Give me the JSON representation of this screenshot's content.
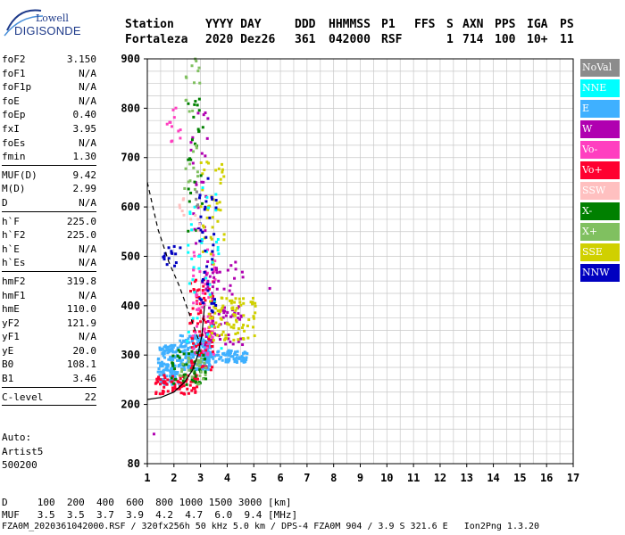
{
  "logo": {
    "line1": "Lowell",
    "line2": "DIGISONDE"
  },
  "header": {
    "labels": {
      "station": "Station",
      "date": "YYYY DAY",
      "ddd": "DDD",
      "time": "HHMMSS",
      "p1": "P1",
      "ffs": "FFS",
      "s": "S",
      "axn": "AXN",
      "pps": "PPS",
      "iga": "IGA",
      "ps": "PS"
    },
    "values": {
      "station": "Fortaleza",
      "date": "2020 Dez26",
      "ddd": "361",
      "time": "042000",
      "p1": "RSF",
      "s": "1",
      "axn": "714",
      "pps": "100",
      "iga": "10+",
      "ps": "11"
    }
  },
  "params": {
    "group1": [
      {
        "name": "foF2",
        "value": "3.150"
      },
      {
        "name": "foF1",
        "value": "N/A"
      },
      {
        "name": "foF1p",
        "value": "N/A"
      },
      {
        "name": "foE",
        "value": "N/A"
      },
      {
        "name": "foEp",
        "value": "0.40"
      },
      {
        "name": "fxI",
        "value": "3.95"
      },
      {
        "name": "foEs",
        "value": "N/A"
      },
      {
        "name": "fmin",
        "value": "1.30"
      }
    ],
    "group2": [
      {
        "name": "MUF(D)",
        "value": "9.42"
      },
      {
        "name": "M(D)",
        "value": "2.99"
      },
      {
        "name": "D",
        "value": "N/A"
      }
    ],
    "group3": [
      {
        "name": "h`F",
        "value": "225.0"
      },
      {
        "name": "h`F2",
        "value": "225.0"
      },
      {
        "name": "h`E",
        "value": "N/A"
      },
      {
        "name": "h`Es",
        "value": "N/A"
      }
    ],
    "group4": [
      {
        "name": "hmF2",
        "value": "319.8"
      },
      {
        "name": "hmF1",
        "value": "N/A"
      },
      {
        "name": "hmE",
        "value": "110.0"
      },
      {
        "name": "yF2",
        "value": "121.9"
      },
      {
        "name": "yF1",
        "value": "N/A"
      },
      {
        "name": "yE",
        "value": "20.0"
      },
      {
        "name": "B0",
        "value": "108.1"
      },
      {
        "name": "B1",
        "value": "3.46"
      }
    ],
    "group5": [
      {
        "name": "C-level",
        "value": "22"
      }
    ]
  },
  "auto": {
    "line1": "Auto:",
    "line2": "Artist5",
    "line3": "500200"
  },
  "legend": [
    {
      "label": "NoVal",
      "color": "#8c8c8c"
    },
    {
      "label": "NNE",
      "color": "#00ffff"
    },
    {
      "label": "E",
      "color": "#3fb0ff"
    },
    {
      "label": "W",
      "color": "#b000b0"
    },
    {
      "label": "Vo-",
      "color": "#ff3fc0"
    },
    {
      "label": "Vo+",
      "color": "#ff0030"
    },
    {
      "label": "SSW",
      "color": "#ffc0c0"
    },
    {
      "label": "X-",
      "color": "#008000"
    },
    {
      "label": "X+",
      "color": "#80c060"
    },
    {
      "label": "SSE",
      "color": "#d0d000"
    },
    {
      "label": "NNW",
      "color": "#0000c0"
    }
  ],
  "footer": {
    "line1": "D     100  200  400  600  800 1000 1500 3000 [km]",
    "line2": "MUF   3.5  3.5  3.7  3.9  4.2  4.7  6.0  9.4 [MHz]",
    "line3": "FZA0M_2020361042000.RSF / 320fx256h 50 kHz 5.0 km / DPS-4 FZA0M 904 / 3.9 S 321.6 E   Ion2Png 1.3.20"
  },
  "chart_data": {
    "type": "scatter",
    "xlim": [
      1,
      17
    ],
    "ylim": [
      80,
      900
    ],
    "x_ticks": [
      1,
      2,
      3,
      4,
      5,
      6,
      7,
      8,
      9,
      10,
      11,
      12,
      13,
      14,
      15,
      16,
      17
    ],
    "y_ticks": [
      80,
      200,
      300,
      400,
      500,
      600,
      700,
      800,
      900
    ],
    "grid": true,
    "legend_position": "right",
    "clusters": [
      {
        "series": "E",
        "x": [
          1.4,
          2.2
        ],
        "y": [
          240,
          320
        ],
        "n": 140
      },
      {
        "series": "E",
        "x": [
          2.2,
          3.4
        ],
        "y": [
          270,
          340
        ],
        "n": 180
      },
      {
        "series": "E",
        "x": [
          3.2,
          4.8
        ],
        "y": [
          285,
          310
        ],
        "n": 90
      },
      {
        "series": "Vo+",
        "x": [
          1.3,
          2.9
        ],
        "y": [
          220,
          260
        ],
        "n": 80
      },
      {
        "series": "Vo+",
        "x": [
          2.6,
          3.5
        ],
        "y": [
          260,
          460
        ],
        "n": 90
      },
      {
        "series": "Vo-",
        "x": [
          2.7,
          3.6
        ],
        "y": [
          300,
          520
        ],
        "n": 60
      },
      {
        "series": "X-",
        "x": [
          1.8,
          3.2
        ],
        "y": [
          240,
          310
        ],
        "n": 50
      },
      {
        "series": "X+",
        "x": [
          2.2,
          3.2
        ],
        "y": [
          240,
          300
        ],
        "n": 30
      },
      {
        "series": "W",
        "x": [
          3.0,
          4.6
        ],
        "y": [
          320,
          490
        ],
        "n": 80
      },
      {
        "series": "W",
        "x": [
          2.6,
          3.3
        ],
        "y": [
          520,
          800
        ],
        "n": 25
      },
      {
        "series": "SSE",
        "x": [
          3.3,
          5.1
        ],
        "y": [
          330,
          420
        ],
        "n": 90
      },
      {
        "series": "SSE",
        "x": [
          3.0,
          3.9
        ],
        "y": [
          480,
          720
        ],
        "n": 40
      },
      {
        "series": "NNE",
        "x": [
          2.5,
          3.8
        ],
        "y": [
          280,
          640
        ],
        "n": 40
      },
      {
        "series": "NNW",
        "x": [
          2.9,
          3.6
        ],
        "y": [
          380,
          660
        ],
        "n": 40
      },
      {
        "series": "NNW",
        "x": [
          1.6,
          2.4
        ],
        "y": [
          480,
          520
        ],
        "n": 15
      },
      {
        "series": "X-",
        "x": [
          2.5,
          3.1
        ],
        "y": [
          550,
          820
        ],
        "n": 25
      },
      {
        "series": "X+",
        "x": [
          2.4,
          3.0
        ],
        "y": [
          620,
          900
        ],
        "n": 25
      },
      {
        "series": "SSW",
        "x": [
          2.2,
          3.0
        ],
        "y": [
          540,
          620
        ],
        "n": 12
      },
      {
        "series": "Vo-",
        "x": [
          1.7,
          2.3
        ],
        "y": [
          730,
          810
        ],
        "n": 12
      },
      {
        "series": "NoVal",
        "x": [
          2.7,
          2.9
        ],
        "y": [
          600,
          640
        ],
        "n": 5
      }
    ],
    "points": [
      {
        "series": "W",
        "x": 1.25,
        "y": 140
      },
      {
        "series": "W",
        "x": 5.6,
        "y": 435
      }
    ],
    "curves": [
      {
        "name": "dashed",
        "style": "dashed",
        "x": [
          1,
          1.4,
          1.8,
          2.2,
          2.6,
          3.0
        ],
        "y": [
          650,
          555,
          490,
          440,
          380,
          320
        ]
      },
      {
        "name": "solid",
        "style": "solid",
        "x": [
          1.0,
          1.5,
          2.0,
          2.4,
          2.7,
          2.9,
          3.05,
          3.15
        ],
        "y": [
          210,
          214,
          225,
          245,
          270,
          300,
          340,
          400
        ]
      }
    ]
  }
}
